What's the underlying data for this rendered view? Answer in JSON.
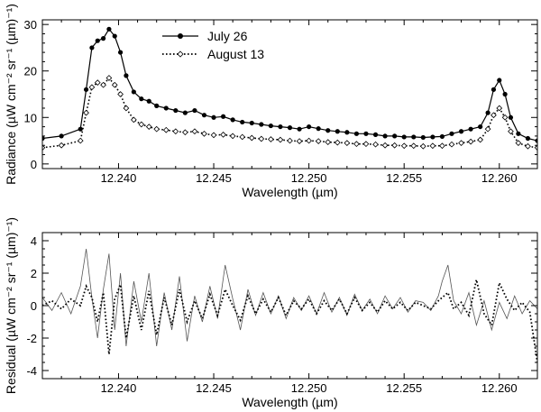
{
  "chart_data": [
    {
      "type": "line",
      "title": "",
      "xlabel": "Wavelength (µm)",
      "ylabel": "Radiance (µW cm⁻² sr⁻¹ (µm)⁻¹)",
      "xlim": [
        12.236,
        12.262
      ],
      "ylim": [
        -1,
        31
      ],
      "xticks": [
        12.24,
        12.245,
        12.25,
        12.255,
        12.26
      ],
      "xtick_labels": [
        "12.240",
        "12.245",
        "12.250",
        "12.255",
        "12.260"
      ],
      "yticks": [
        0,
        10,
        20,
        30
      ],
      "ytick_labels": [
        "0",
        "10",
        "20",
        "30"
      ],
      "legend": {
        "position": "top-center"
      },
      "series": [
        {
          "name": "July 26",
          "style": "solid line with filled circles",
          "x": [
            12.236,
            12.237,
            12.238,
            12.2383,
            12.2386,
            12.2389,
            12.2392,
            12.2395,
            12.2398,
            12.2401,
            12.2404,
            12.2408,
            12.2412,
            12.2416,
            12.242,
            12.2425,
            12.243,
            12.2435,
            12.244,
            12.2445,
            12.245,
            12.2455,
            12.246,
            12.2465,
            12.247,
            12.2475,
            12.248,
            12.2485,
            12.249,
            12.2495,
            12.25,
            12.2505,
            12.251,
            12.2515,
            12.252,
            12.2525,
            12.253,
            12.2535,
            12.254,
            12.2545,
            12.255,
            12.2555,
            12.256,
            12.2565,
            12.257,
            12.2575,
            12.258,
            12.2585,
            12.259,
            12.2594,
            12.2597,
            12.26,
            12.2603,
            12.2606,
            12.261,
            12.2615,
            12.262
          ],
          "values": [
            5.5,
            6.0,
            7.5,
            16.0,
            25.0,
            26.5,
            27.0,
            29.0,
            27.5,
            24.0,
            19.0,
            15.5,
            14.0,
            13.5,
            12.5,
            12.0,
            11.5,
            11.0,
            11.5,
            10.5,
            10.0,
            10.2,
            9.5,
            9.0,
            8.8,
            8.5,
            8.2,
            8.0,
            7.8,
            7.5,
            8.0,
            7.6,
            7.2,
            7.0,
            6.8,
            6.5,
            6.5,
            6.3,
            6.0,
            6.0,
            5.8,
            5.8,
            5.7,
            5.8,
            5.9,
            6.5,
            7.0,
            7.5,
            8.0,
            11.0,
            16.0,
            18.0,
            15.0,
            10.0,
            6.5,
            5.5,
            5.0
          ]
        },
        {
          "name": "August 13",
          "style": "dotted line with open diamonds",
          "x": [
            12.236,
            12.237,
            12.238,
            12.2383,
            12.2386,
            12.2389,
            12.2392,
            12.2395,
            12.2398,
            12.2401,
            12.2404,
            12.2408,
            12.2412,
            12.2416,
            12.242,
            12.2425,
            12.243,
            12.2435,
            12.244,
            12.2445,
            12.245,
            12.2455,
            12.246,
            12.2465,
            12.247,
            12.2475,
            12.248,
            12.2485,
            12.249,
            12.2495,
            12.25,
            12.2505,
            12.251,
            12.2515,
            12.252,
            12.2525,
            12.253,
            12.2535,
            12.254,
            12.2545,
            12.255,
            12.2555,
            12.256,
            12.2565,
            12.257,
            12.2575,
            12.258,
            12.2585,
            12.259,
            12.2594,
            12.2597,
            12.26,
            12.2603,
            12.2606,
            12.261,
            12.2615,
            12.262
          ],
          "values": [
            3.5,
            4.0,
            5.0,
            11.0,
            16.5,
            17.5,
            17.0,
            18.5,
            17.0,
            15.0,
            12.0,
            9.5,
            8.5,
            8.0,
            7.5,
            7.3,
            7.0,
            6.8,
            7.0,
            6.5,
            6.2,
            6.3,
            6.0,
            5.8,
            5.6,
            5.4,
            5.3,
            5.2,
            5.0,
            4.9,
            5.0,
            4.9,
            4.7,
            4.6,
            4.5,
            4.3,
            4.3,
            4.2,
            4.0,
            4.0,
            3.9,
            3.9,
            3.8,
            3.9,
            3.9,
            4.2,
            4.5,
            4.8,
            5.2,
            7.5,
            10.5,
            12.0,
            10.0,
            7.0,
            4.5,
            3.8,
            3.5
          ]
        }
      ]
    },
    {
      "type": "line",
      "title": "",
      "xlabel": "Wavelength (µm)",
      "ylabel": "Residual (µW cm⁻² sr⁻¹ (µm)⁻¹)",
      "xlim": [
        12.236,
        12.262
      ],
      "ylim": [
        -4.5,
        4.5
      ],
      "xticks": [
        12.24,
        12.245,
        12.25,
        12.255,
        12.26
      ],
      "xtick_labels": [
        "12.240",
        "12.245",
        "12.250",
        "12.255",
        "12.260"
      ],
      "yticks": [
        -4,
        -2,
        0,
        2,
        4
      ],
      "ytick_labels": [
        "-4",
        "-2",
        "0",
        "2",
        "4"
      ],
      "series": [
        {
          "name": "July 26",
          "style": "thin solid gray line",
          "x": [
            12.236,
            12.2365,
            12.237,
            12.2375,
            12.238,
            12.2383,
            12.2386,
            12.2389,
            12.2392,
            12.2395,
            12.2398,
            12.2401,
            12.2404,
            12.2408,
            12.2412,
            12.2416,
            12.242,
            12.2424,
            12.2428,
            12.2432,
            12.2436,
            12.244,
            12.2444,
            12.2448,
            12.2452,
            12.2456,
            12.246,
            12.2464,
            12.2468,
            12.2472,
            12.2476,
            12.248,
            12.2484,
            12.2488,
            12.2492,
            12.2496,
            12.25,
            12.2504,
            12.2508,
            12.2512,
            12.2516,
            12.252,
            12.2524,
            12.2528,
            12.2532,
            12.2536,
            12.254,
            12.2544,
            12.2548,
            12.2552,
            12.2556,
            12.256,
            12.2564,
            12.2568,
            12.257,
            12.2573,
            12.2576,
            12.258,
            12.2584,
            12.2588,
            12.2592,
            12.2596,
            12.26,
            12.2604,
            12.2608,
            12.2612,
            12.2616,
            12.262
          ],
          "values": [
            0.5,
            -0.3,
            0.8,
            -0.5,
            1.2,
            3.5,
            0.5,
            -2.0,
            1.0,
            3.2,
            -1.5,
            2.0,
            -2.5,
            1.5,
            -1.0,
            2.0,
            -2.5,
            0.8,
            -1.5,
            1.8,
            -2.2,
            0.6,
            -1.0,
            1.2,
            -0.8,
            2.5,
            0.4,
            -1.5,
            1.0,
            -0.6,
            0.8,
            -0.5,
            0.6,
            -0.8,
            0.5,
            -0.3,
            0.6,
            -0.5,
            0.8,
            -0.4,
            0.5,
            -0.6,
            0.7,
            -0.3,
            0.4,
            -0.5,
            0.6,
            -0.2,
            0.5,
            -0.4,
            0.3,
            0.2,
            -0.3,
            0.6,
            1.5,
            2.5,
            0.3,
            -0.5,
            0.8,
            -1.2,
            0.3,
            -1.5,
            0.2,
            -0.8,
            0.6,
            -0.5,
            0.3,
            -0.2
          ]
        },
        {
          "name": "August 13",
          "style": "dotted black line",
          "x": [
            12.236,
            12.2365,
            12.237,
            12.2375,
            12.238,
            12.2383,
            12.2386,
            12.2389,
            12.2392,
            12.2395,
            12.2398,
            12.2401,
            12.2404,
            12.2408,
            12.2412,
            12.2416,
            12.242,
            12.2424,
            12.2428,
            12.2432,
            12.2436,
            12.244,
            12.2444,
            12.2448,
            12.2452,
            12.2456,
            12.246,
            12.2464,
            12.2468,
            12.2472,
            12.2476,
            12.248,
            12.2484,
            12.2488,
            12.2492,
            12.2496,
            12.25,
            12.2504,
            12.2508,
            12.2512,
            12.2516,
            12.252,
            12.2524,
            12.2528,
            12.2532,
            12.2536,
            12.254,
            12.2544,
            12.2548,
            12.2552,
            12.2556,
            12.256,
            12.2564,
            12.2568,
            12.257,
            12.2573,
            12.2576,
            12.258,
            12.2584,
            12.2588,
            12.2592,
            12.2596,
            12.26,
            12.2604,
            12.2608,
            12.2612,
            12.2616,
            12.262
          ],
          "values": [
            0.0,
            0.3,
            -0.2,
            0.4,
            0.0,
            1.2,
            0.5,
            -1.0,
            0.8,
            -3.0,
            0.4,
            1.3,
            -2.0,
            0.6,
            -1.5,
            0.9,
            -1.8,
            0.5,
            -1.2,
            1.0,
            -1.0,
            0.3,
            -0.8,
            0.7,
            -0.6,
            1.0,
            0.0,
            -0.9,
            0.6,
            -0.5,
            0.4,
            -0.4,
            0.5,
            -0.6,
            0.3,
            -0.2,
            0.4,
            -0.5,
            0.3,
            -0.3,
            0.4,
            -0.5,
            0.5,
            -0.3,
            0.2,
            -0.4,
            0.3,
            -0.2,
            0.2,
            -0.3,
            0.2,
            0.0,
            -0.2,
            0.3,
            0.5,
            0.8,
            -0.2,
            0.2,
            -0.6,
            1.6,
            -0.5,
            -1.2,
            1.4,
            0.4,
            -0.3,
            0.2,
            -0.4,
            -3.5
          ]
        }
      ]
    }
  ]
}
